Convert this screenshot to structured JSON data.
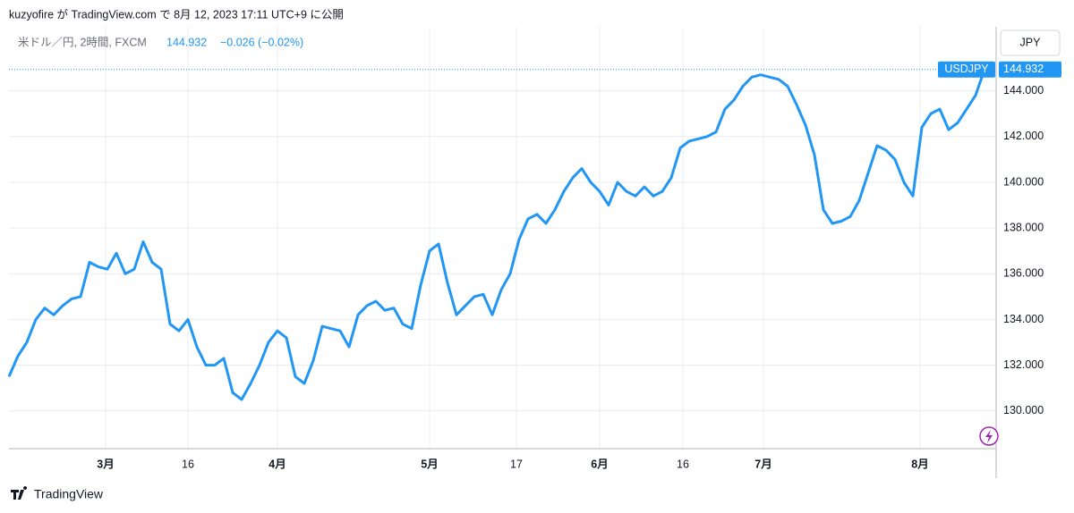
{
  "header": "kuzyofire が TradingView.com で 8月 12, 2023 17:11 UTC+9 に公開",
  "footer": "TradingView",
  "chart_data": {
    "type": "line",
    "symbol_description": "米ドル／円, 2時間, FXCM",
    "change": "−0.026 (−0.02%)",
    "currency": "JPY",
    "series": [
      {
        "name": "USDJPY",
        "color": "#2196f3",
        "values": [
          131.5,
          132.4,
          133.0,
          134.0,
          134.5,
          134.2,
          134.6,
          134.9,
          135.0,
          136.5,
          136.3,
          136.2,
          136.9,
          136.0,
          136.2,
          137.4,
          136.5,
          136.2,
          133.8,
          133.5,
          134.0,
          132.8,
          132.0,
          132.0,
          132.3,
          130.8,
          130.5,
          131.2,
          132.0,
          133.0,
          133.5,
          133.2,
          131.5,
          131.2,
          132.2,
          133.7,
          133.6,
          133.5,
          132.8,
          134.2,
          134.6,
          134.8,
          134.4,
          134.5,
          133.8,
          133.6,
          135.5,
          137.0,
          137.3,
          135.6,
          134.2,
          134.6,
          135.0,
          135.1,
          134.2,
          135.3,
          136.0,
          137.5,
          138.4,
          138.6,
          138.2,
          138.8,
          139.6,
          140.2,
          140.6,
          140.0,
          139.6,
          139.0,
          140.0,
          139.6,
          139.4,
          139.8,
          139.4,
          139.6,
          140.2,
          141.5,
          141.8,
          141.9,
          142.0,
          142.2,
          143.2,
          143.6,
          144.2,
          144.6,
          144.7,
          144.6,
          144.5,
          144.2,
          143.4,
          142.5,
          141.2,
          138.8,
          138.2,
          138.3,
          138.5,
          139.2,
          140.4,
          141.6,
          141.4,
          141.0,
          140.0,
          139.4,
          142.4,
          143.0,
          143.2,
          142.3,
          142.6,
          143.2,
          143.8,
          144.932
        ]
      }
    ],
    "xlim": [
      0,
      110.3
    ],
    "xticks": [
      {
        "value": 10.8,
        "label": "3月"
      },
      {
        "value": 20,
        "label": "16"
      },
      {
        "value": 30,
        "label": "4月"
      },
      {
        "value": 47,
        "label": "5月"
      },
      {
        "value": 56.7,
        "label": "17"
      },
      {
        "value": 66,
        "label": "6月"
      },
      {
        "value": 75.3,
        "label": "16"
      },
      {
        "value": 84.3,
        "label": "7月"
      },
      {
        "value": 101.8,
        "label": "8月"
      }
    ],
    "ylim": [
      128.35,
      146.8
    ],
    "yticks": [
      {
        "value": 130,
        "label": "130.000"
      },
      {
        "value": 132,
        "label": "132.000"
      },
      {
        "value": 134,
        "label": "134.000"
      },
      {
        "value": 136,
        "label": "136.000"
      },
      {
        "value": 138,
        "label": "138.000"
      },
      {
        "value": 140,
        "label": "140.000"
      },
      {
        "value": 142,
        "label": "142.000"
      },
      {
        "value": 144,
        "label": "144.000"
      }
    ],
    "grid": true
  }
}
